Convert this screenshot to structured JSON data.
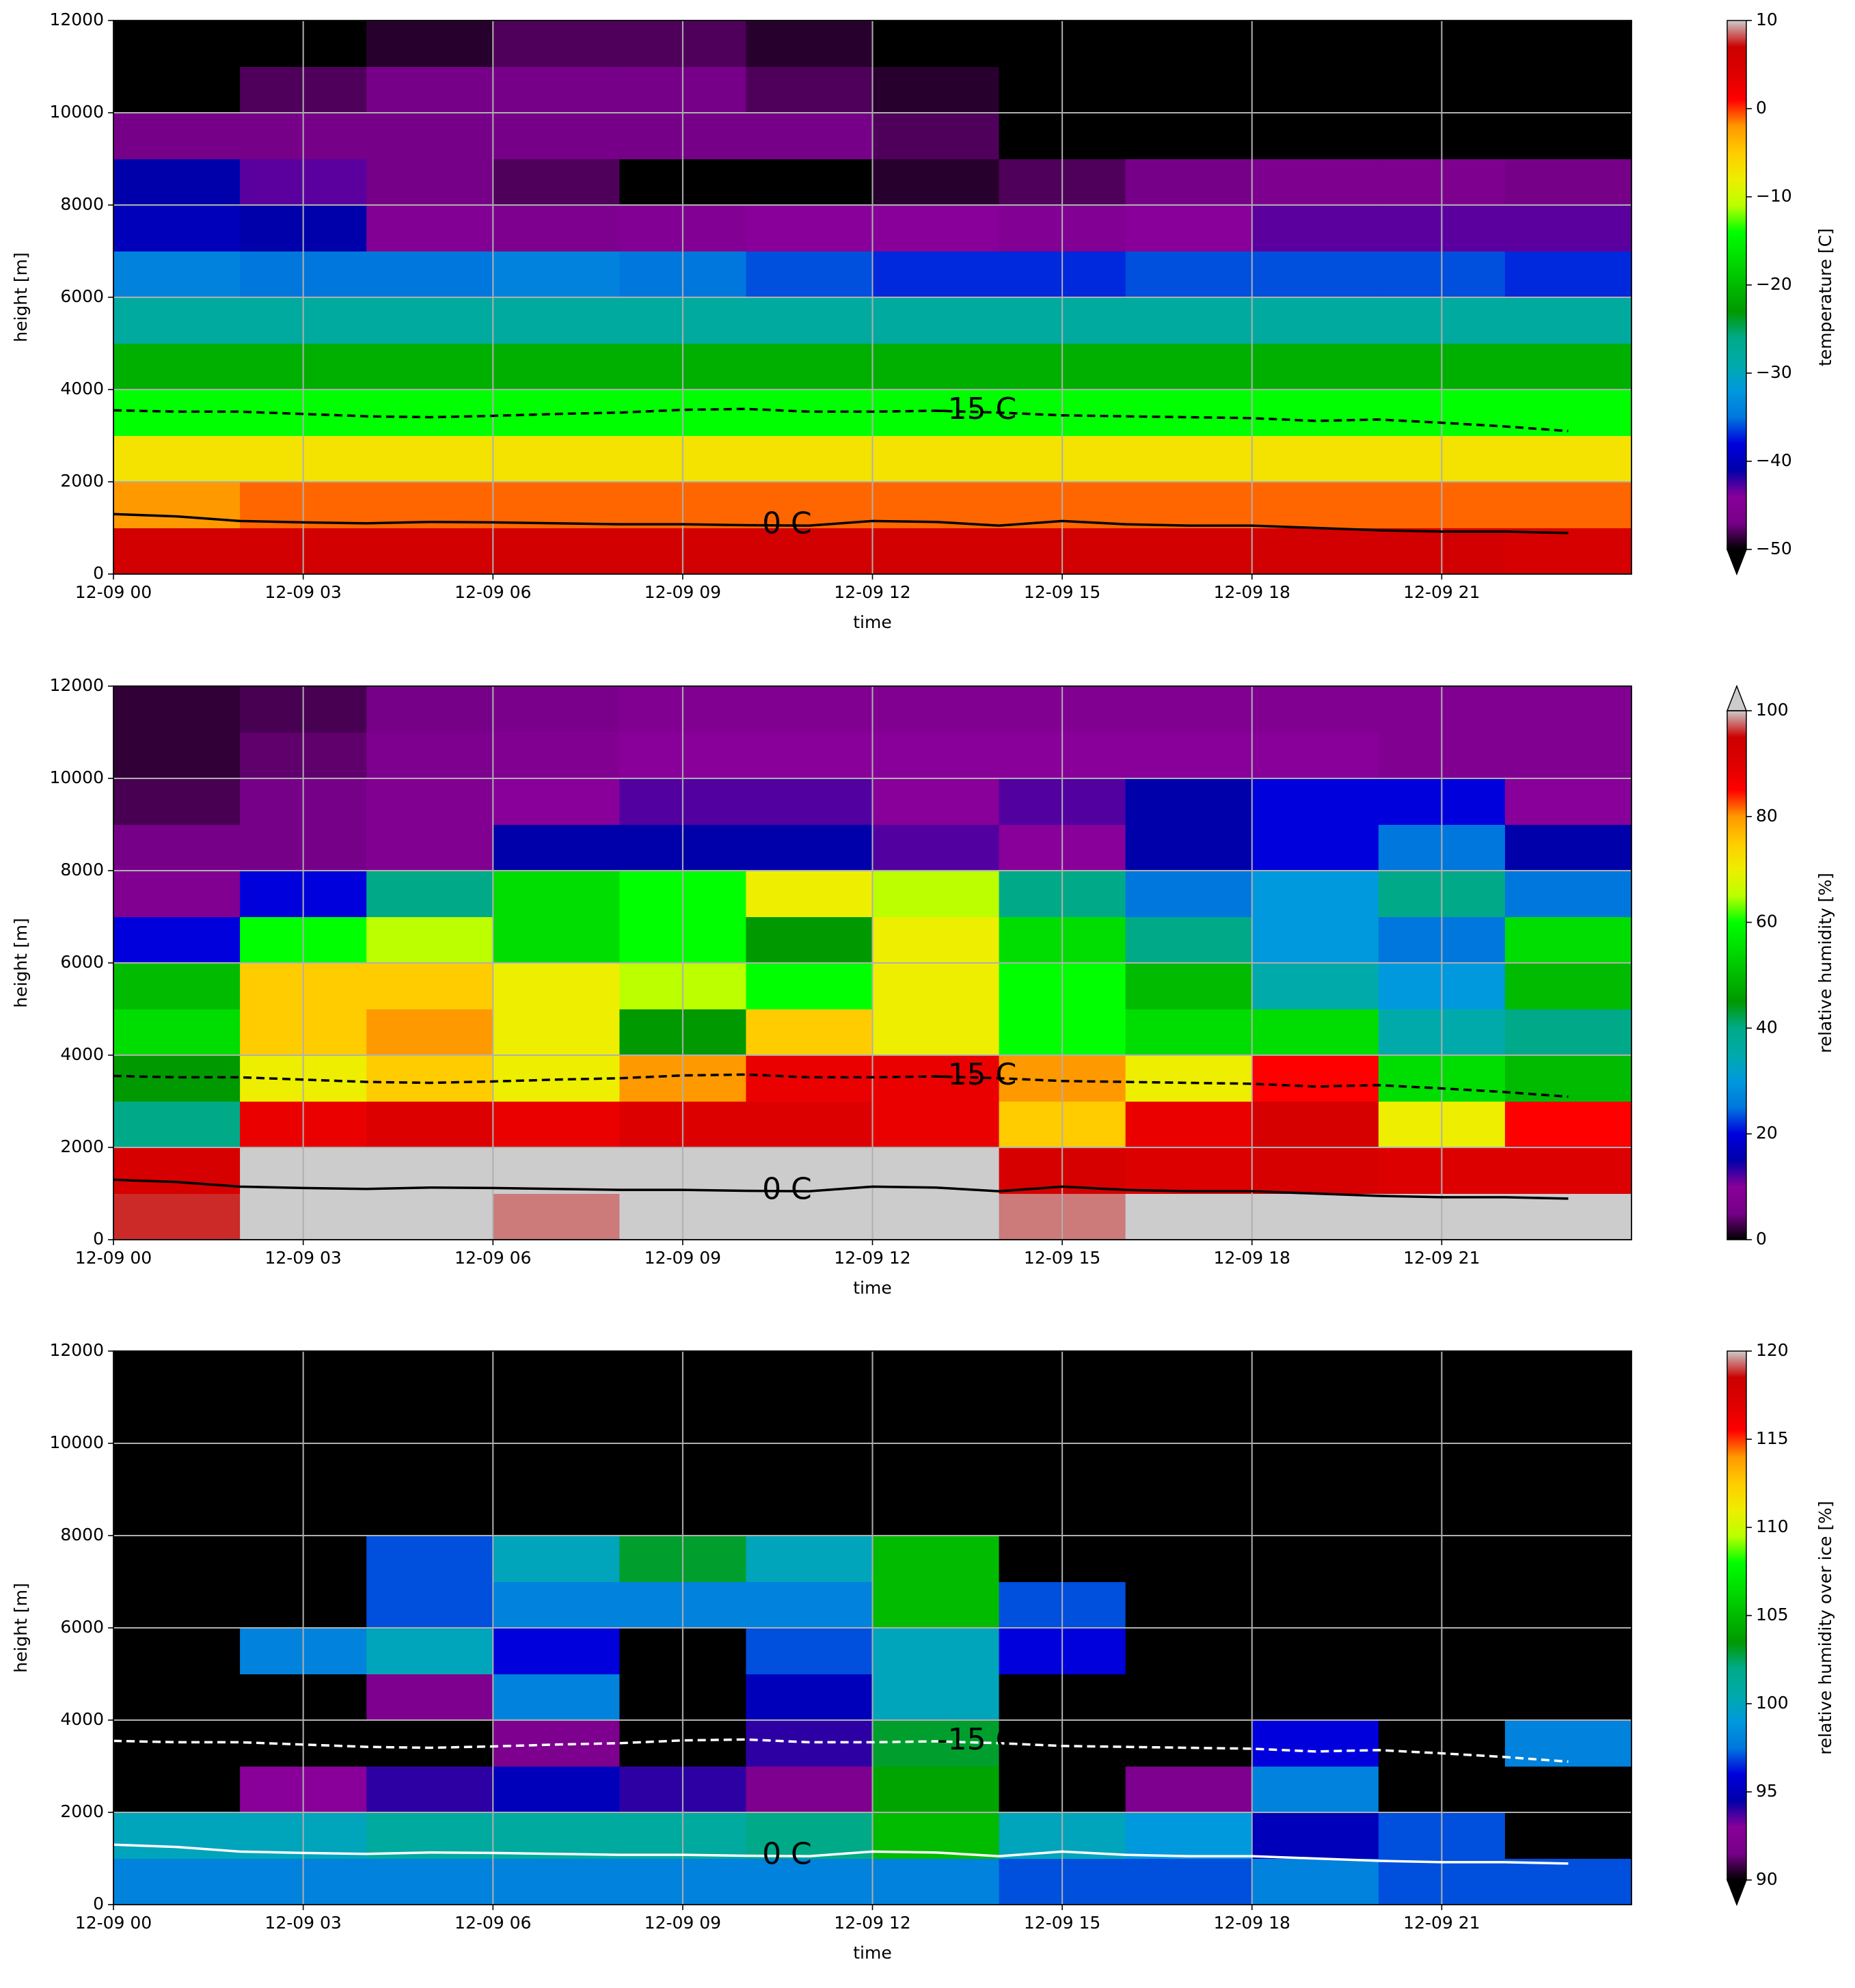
{
  "chart_data": [
    {
      "type": "heatmap",
      "xlabel": "time",
      "ylabel": "height [m]",
      "colorbar_label": "temperature [C]",
      "extend": "min",
      "xlim": [
        "12-09 00",
        "12-10 00"
      ],
      "xticks": [
        "12-09 00",
        "12-09 03",
        "12-09 06",
        "12-09 09",
        "12-09 12",
        "12-09 15",
        "12-09 18",
        "12-09 21"
      ],
      "ylim": [
        0,
        12000
      ],
      "yticks": [
        0,
        2000,
        4000,
        6000,
        8000,
        10000,
        12000
      ],
      "grid": true,
      "clim": [
        -50,
        10
      ],
      "cticks": [
        {
          "value": -50,
          "label": "−50"
        },
        {
          "value": -40,
          "label": "−40"
        },
        {
          "value": -30,
          "label": "−30"
        },
        {
          "value": -20,
          "label": "−20"
        },
        {
          "value": -10,
          "label": "−10"
        },
        0,
        10
      ],
      "x": [
        "12-09 01",
        "12-09 03",
        "12-09 05",
        "12-09 07",
        "12-09 09",
        "12-09 11",
        "12-09 13",
        "12-09 15",
        "12-09 17",
        "12-09 19",
        "12-09 21",
        "12-09 23"
      ],
      "y": [
        500,
        1500,
        2500,
        3500,
        4500,
        5500,
        6500,
        7500,
        8500,
        9500,
        10500,
        11500
      ],
      "z": [
        [
          6,
          6,
          6,
          6,
          6,
          6,
          6,
          6,
          6,
          6,
          6,
          5
        ],
        [
          -2,
          -1,
          -1,
          -1,
          -1,
          -1,
          -1,
          -1,
          -1,
          -1,
          -1,
          -1
        ],
        [
          -7,
          -7,
          -7,
          -7,
          -7,
          -7,
          -7,
          -7,
          -7,
          -7,
          -7,
          -7
        ],
        [
          -14,
          -14,
          -14,
          -14,
          -14,
          -14,
          -14,
          -14,
          -14,
          -14,
          -14,
          -14
        ],
        [
          -21,
          -21,
          -21,
          -21,
          -21,
          -21,
          -21,
          -21,
          -21,
          -21,
          -21,
          -21
        ],
        [
          -28,
          -28,
          -28,
          -28,
          -28,
          -28,
          -28,
          -28,
          -28,
          -28,
          -28,
          -28
        ],
        [
          -34,
          -35,
          -35,
          -34,
          -35,
          -36,
          -37,
          -37,
          -36,
          -36,
          -36,
          -37
        ],
        [
          -40,
          -41,
          -45,
          -46,
          -45,
          -44,
          -44,
          -45,
          -44,
          -43,
          -43,
          -43
        ],
        [
          -41,
          -43,
          -47,
          -48,
          -50,
          -51,
          -49,
          -48,
          -47,
          -46,
          -46,
          -47
        ],
        [
          -47,
          -47,
          -47,
          -47,
          -47,
          -47,
          -48,
          -50,
          -51,
          -52,
          -52,
          -52
        ],
        [
          -50,
          -48,
          -47,
          -47,
          -47,
          -48,
          -49,
          -51,
          -52,
          -53,
          -53,
          -53
        ],
        [
          -53,
          -51,
          -49,
          -48,
          -48,
          -49,
          -50,
          -52,
          -53,
          -54,
          -54,
          -54
        ]
      ],
      "contour_color": "#000000",
      "contour_x": [
        "12-09 00",
        "12-09 01",
        "12-09 02",
        "12-09 03",
        "12-09 04",
        "12-09 05",
        "12-09 06",
        "12-09 07",
        "12-09 08",
        "12-09 09",
        "12-09 10",
        "12-09 11",
        "12-09 12",
        "12-09 13",
        "12-09 14",
        "12-09 15",
        "12-09 16",
        "12-09 17",
        "12-09 18",
        "12-09 19",
        "12-09 20",
        "12-09 21",
        "12-09 22",
        "12-09 23"
      ],
      "contours": [
        {
          "label": "0 C",
          "style": "solid",
          "values": [
            1300,
            1250,
            1150,
            1120,
            1100,
            1130,
            1120,
            1100,
            1080,
            1080,
            1060,
            1050,
            1150,
            1130,
            1050,
            1150,
            1080,
            1050,
            1050,
            1000,
            950,
            920,
            920,
            890
          ]
        },
        {
          "label": "-15 C",
          "style": "dashed",
          "values": [
            3550,
            3520,
            3520,
            3470,
            3420,
            3400,
            3430,
            3470,
            3500,
            3560,
            3580,
            3520,
            3520,
            3540,
            3500,
            3440,
            3420,
            3400,
            3380,
            3320,
            3350,
            3280,
            3200,
            3100
          ]
        }
      ]
    },
    {
      "type": "heatmap",
      "xlabel": "time",
      "ylabel": "height [m]",
      "colorbar_label": "relative humidity [%]",
      "extend": "max",
      "xlim": [
        "12-09 00",
        "12-10 00"
      ],
      "xticks": [
        "12-09 00",
        "12-09 03",
        "12-09 06",
        "12-09 09",
        "12-09 12",
        "12-09 15",
        "12-09 18",
        "12-09 21"
      ],
      "ylim": [
        0,
        12000
      ],
      "yticks": [
        0,
        2000,
        4000,
        6000,
        8000,
        10000,
        12000
      ],
      "grid": true,
      "clim": [
        0,
        100
      ],
      "cticks": [
        0,
        20,
        40,
        60,
        80,
        100
      ],
      "x": [
        "12-09 01",
        "12-09 03",
        "12-09 05",
        "12-09 07",
        "12-09 09",
        "12-09 11",
        "12-09 13",
        "12-09 15",
        "12-09 17",
        "12-09 19",
        "12-09 21",
        "12-09 23"
      ],
      "y": [
        500,
        1500,
        2500,
        3500,
        4500,
        5500,
        6500,
        7500,
        8500,
        9500,
        10500,
        11500
      ],
      "z": [
        [
          96,
          100,
          100,
          98,
          100,
          100,
          100,
          98,
          100,
          100,
          100,
          100
        ],
        [
          92,
          101,
          101,
          101,
          101,
          100,
          101,
          92,
          90,
          92,
          90,
          90
        ],
        [
          40,
          88,
          90,
          88,
          90,
          90,
          88,
          75,
          88,
          92,
          70,
          85
        ],
        [
          45,
          70,
          75,
          70,
          80,
          88,
          88,
          80,
          70,
          85,
          55,
          50
        ],
        [
          55,
          75,
          80,
          70,
          45,
          75,
          70,
          60,
          55,
          55,
          35,
          40
        ],
        [
          50,
          75,
          75,
          70,
          65,
          60,
          70,
          60,
          50,
          35,
          30,
          50
        ],
        [
          20,
          60,
          65,
          55,
          60,
          45,
          70,
          55,
          40,
          30,
          25,
          55
        ],
        [
          8,
          20,
          40,
          55,
          60,
          70,
          65,
          40,
          25,
          30,
          40,
          25
        ],
        [
          5,
          5,
          8,
          15,
          15,
          15,
          12,
          10,
          15,
          20,
          25,
          15
        ],
        [
          3,
          5,
          8,
          10,
          12,
          12,
          10,
          12,
          15,
          20,
          20,
          10
        ],
        [
          2,
          4,
          7,
          8,
          10,
          10,
          10,
          10,
          10,
          10,
          8,
          8
        ],
        [
          2,
          3,
          5,
          6,
          8,
          8,
          8,
          8,
          8,
          8,
          8,
          8
        ]
      ],
      "contour_color": "#000000",
      "contour_x": [
        "12-09 00",
        "12-09 01",
        "12-09 02",
        "12-09 03",
        "12-09 04",
        "12-09 05",
        "12-09 06",
        "12-09 07",
        "12-09 08",
        "12-09 09",
        "12-09 10",
        "12-09 11",
        "12-09 12",
        "12-09 13",
        "12-09 14",
        "12-09 15",
        "12-09 16",
        "12-09 17",
        "12-09 18",
        "12-09 19",
        "12-09 20",
        "12-09 21",
        "12-09 22",
        "12-09 23"
      ],
      "contours": [
        {
          "label": "0 C",
          "style": "solid",
          "values": [
            1300,
            1250,
            1150,
            1120,
            1100,
            1130,
            1120,
            1100,
            1080,
            1080,
            1060,
            1050,
            1150,
            1130,
            1050,
            1150,
            1080,
            1050,
            1050,
            1000,
            950,
            920,
            920,
            890
          ]
        },
        {
          "label": "-15 C",
          "style": "dashed",
          "values": [
            3550,
            3520,
            3520,
            3470,
            3420,
            3400,
            3430,
            3470,
            3500,
            3560,
            3580,
            3520,
            3520,
            3540,
            3500,
            3440,
            3420,
            3400,
            3380,
            3320,
            3350,
            3280,
            3200,
            3100
          ]
        }
      ]
    },
    {
      "type": "heatmap",
      "xlabel": "time",
      "ylabel": "height [m]",
      "colorbar_label": "relative humidity over ice [%]",
      "extend": "min",
      "xlim": [
        "12-09 00",
        "12-10 00"
      ],
      "xticks": [
        "12-09 00",
        "12-09 03",
        "12-09 06",
        "12-09 09",
        "12-09 12",
        "12-09 15",
        "12-09 18",
        "12-09 21"
      ],
      "ylim": [
        0,
        12000
      ],
      "yticks": [
        0,
        2000,
        4000,
        6000,
        8000,
        10000,
        12000
      ],
      "grid": true,
      "clim": [
        90,
        120
      ],
      "cticks": [
        90,
        95,
        100,
        105,
        110,
        115,
        120
      ],
      "x": [
        "12-09 01",
        "12-09 03",
        "12-09 05",
        "12-09 07",
        "12-09 09",
        "12-09 11",
        "12-09 13",
        "12-09 15",
        "12-09 17",
        "12-09 19",
        "12-09 21",
        "12-09 23"
      ],
      "y": [
        500,
        1500,
        2500,
        3500,
        4500,
        5500,
        6500,
        7500,
        8500,
        9500,
        10500,
        11500
      ],
      "z": [
        [
          98,
          98,
          98,
          98,
          98,
          98,
          98,
          97,
          97,
          98,
          97,
          97
        ],
        [
          100,
          100,
          101,
          101,
          101,
          102,
          105,
          100,
          99,
          95,
          97,
          80
        ],
        [
          88,
          93,
          94,
          95,
          94,
          92,
          104,
          80,
          92,
          98,
          85,
          85
        ],
        [
          80,
          80,
          80,
          92,
          80,
          94,
          103,
          80,
          80,
          96,
          80,
          98
        ],
        [
          80,
          80,
          92,
          98,
          80,
          95,
          100,
          88,
          80,
          80,
          80,
          80
        ],
        [
          80,
          98,
          100,
          96,
          80,
          97,
          100,
          96,
          80,
          80,
          80,
          80
        ],
        [
          80,
          80,
          97,
          98,
          98,
          98,
          105,
          97,
          80,
          80,
          80,
          80
        ],
        [
          80,
          80,
          97,
          100,
          103,
          100,
          105,
          80,
          80,
          80,
          80,
          80
        ],
        [
          80,
          80,
          80,
          80,
          80,
          80,
          80,
          80,
          80,
          80,
          80,
          80
        ],
        [
          80,
          80,
          80,
          80,
          80,
          80,
          80,
          80,
          80,
          80,
          80,
          80
        ],
        [
          80,
          80,
          80,
          80,
          80,
          80,
          80,
          80,
          80,
          80,
          80,
          80
        ],
        [
          80,
          80,
          80,
          80,
          80,
          80,
          80,
          80,
          80,
          80,
          80,
          80
        ]
      ],
      "contour_color": "#ffffff",
      "contour_x": [
        "12-09 00",
        "12-09 01",
        "12-09 02",
        "12-09 03",
        "12-09 04",
        "12-09 05",
        "12-09 06",
        "12-09 07",
        "12-09 08",
        "12-09 09",
        "12-09 10",
        "12-09 11",
        "12-09 12",
        "12-09 13",
        "12-09 14",
        "12-09 15",
        "12-09 16",
        "12-09 17",
        "12-09 18",
        "12-09 19",
        "12-09 20",
        "12-09 21",
        "12-09 22",
        "12-09 23"
      ],
      "contours": [
        {
          "label": "0 C",
          "style": "solid",
          "values": [
            1300,
            1250,
            1150,
            1120,
            1100,
            1130,
            1120,
            1100,
            1080,
            1080,
            1060,
            1050,
            1150,
            1130,
            1050,
            1150,
            1080,
            1050,
            1050,
            1000,
            950,
            920,
            920,
            890
          ]
        },
        {
          "label": "-15 C",
          "style": "dashed",
          "values": [
            3550,
            3520,
            3520,
            3470,
            3420,
            3400,
            3430,
            3470,
            3500,
            3560,
            3580,
            3520,
            3520,
            3540,
            3500,
            3440,
            3420,
            3400,
            3380,
            3320,
            3350,
            3280,
            3200,
            3100
          ]
        }
      ]
    }
  ]
}
